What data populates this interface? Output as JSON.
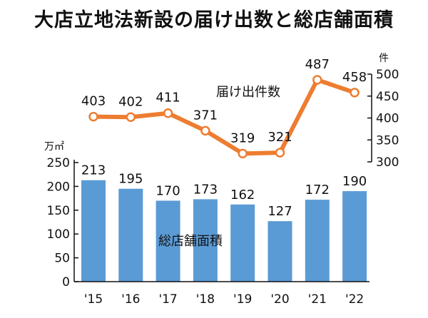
{
  "chart_data": {
    "type": "bar+line",
    "title": "大店立地法新設の届け出数と総店舗面積",
    "categories": [
      "'15",
      "'16",
      "'17",
      "'18",
      "'19",
      "'20",
      "'21",
      "'22"
    ],
    "bar_series": {
      "name": "総店舗面積",
      "unit": "万㎡",
      "values": [
        213,
        195,
        170,
        173,
        162,
        127,
        172,
        190
      ],
      "ylim": [
        0,
        250
      ],
      "ticks": [
        0,
        50,
        100,
        150,
        200,
        250
      ],
      "color": "#5b9bd5",
      "axis": "left"
    },
    "line_series": {
      "name": "届け出件数",
      "unit": "件",
      "values": [
        403,
        402,
        411,
        371,
        319,
        321,
        487,
        458
      ],
      "ylim": [
        300,
        500
      ],
      "ticks": [
        300,
        350,
        400,
        450,
        500
      ],
      "color": "#ed7d31",
      "axis": "right"
    },
    "grid": false,
    "legend": "none"
  }
}
